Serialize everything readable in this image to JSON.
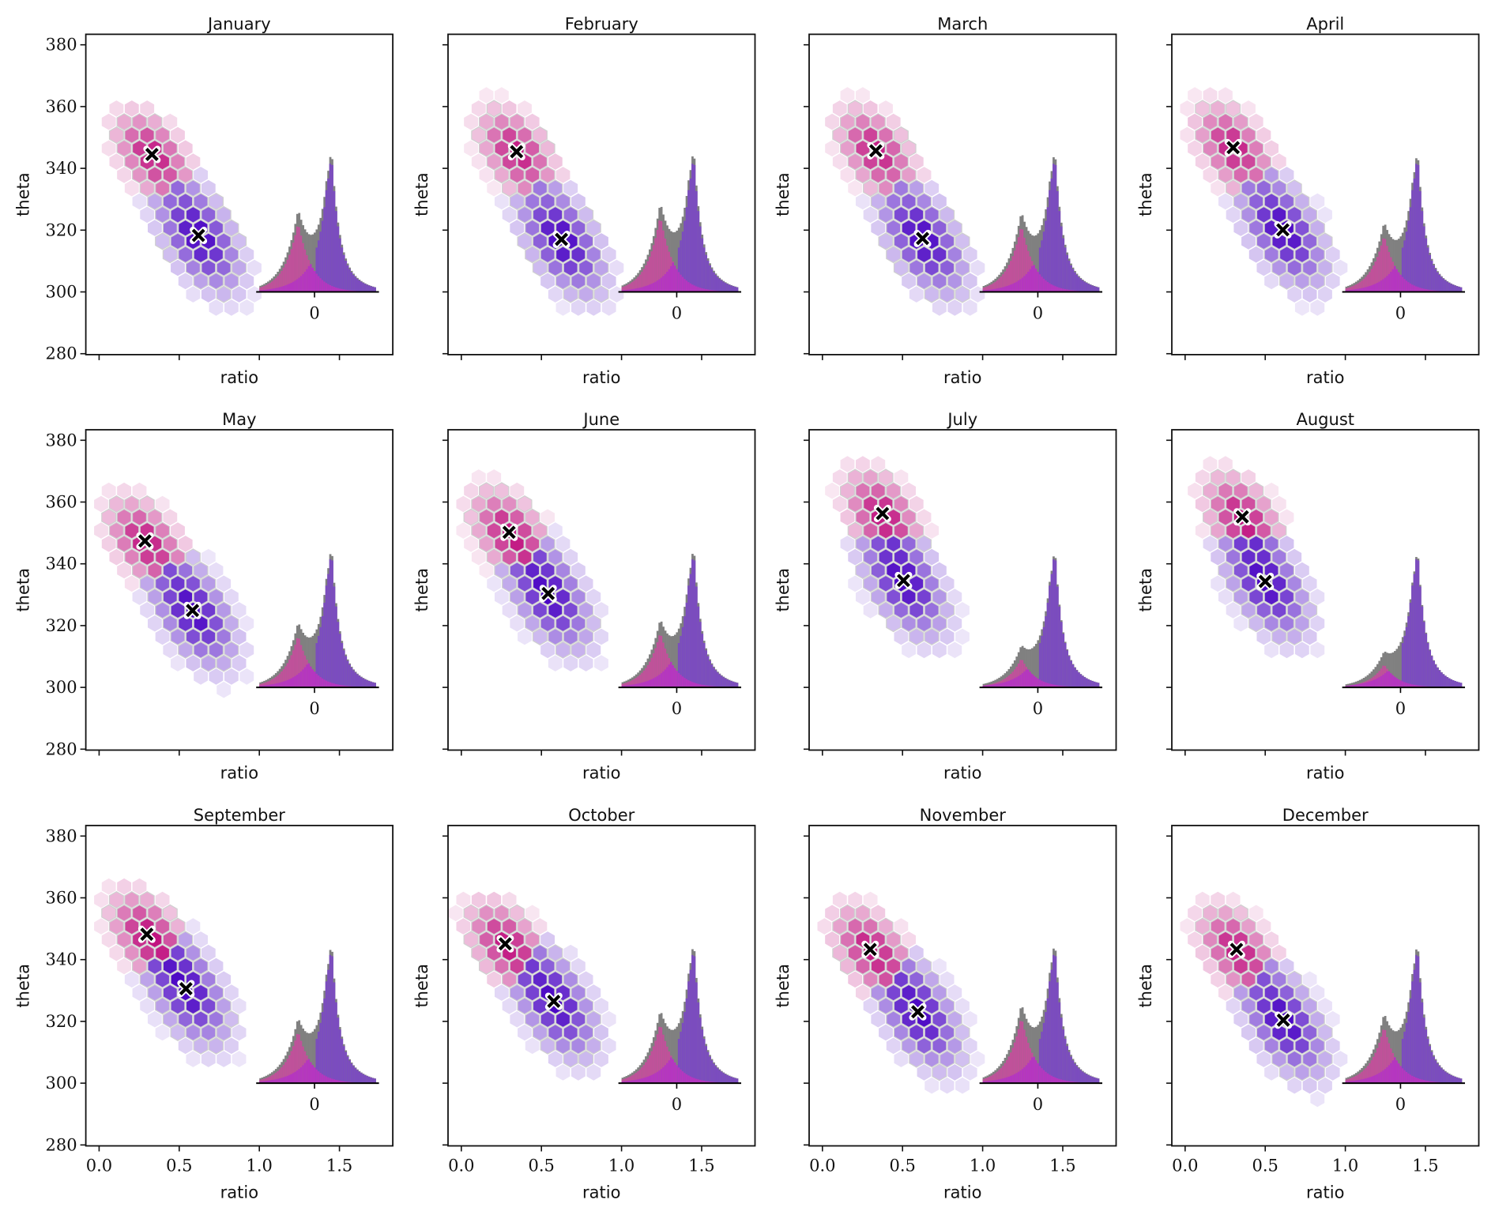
{
  "chart_data": {
    "type": "scatter",
    "subtype": "hexbin-with-inset-histogram",
    "xlabel": "ratio",
    "ylabel": "theta",
    "xlim": [
      -0.083,
      1.833
    ],
    "ylim": [
      279.7,
      383.4
    ],
    "xticks": [
      0.0,
      0.5,
      1.0,
      1.5
    ],
    "xtick_labels": [
      "0.0",
      "0.5",
      "1.0",
      "1.5"
    ],
    "yticks": [
      280,
      300,
      320,
      340,
      360,
      380
    ],
    "ytick_labels": [
      "280",
      "300",
      "320",
      "340",
      "360",
      "380"
    ],
    "inset_tick_label": "0",
    "colors": {
      "component_a": "#c0127f",
      "component_b": "#4b06c4",
      "hist_a": "#c0519a",
      "hist_b": "#7b4cbf",
      "hist_overlap": "#b536c0",
      "hist_total": "#808080",
      "marker": "#000000"
    },
    "panels": [
      {
        "title": "January",
        "a": {
          "x": 0.33,
          "y": 344.5
        },
        "b": {
          "x": 0.62,
          "y": 318.3
        },
        "hist_a_peak": 22.6,
        "hist_b_peak": 49.8
      },
      {
        "title": "February",
        "a": {
          "x": 0.345,
          "y": 345.4
        },
        "b": {
          "x": 0.625,
          "y": 317.0
        },
        "hist_a_peak": 24.7,
        "hist_b_peak": 49.8
      },
      {
        "title": "March",
        "a": {
          "x": 0.333,
          "y": 345.7
        },
        "b": {
          "x": 0.625,
          "y": 317.3
        },
        "hist_a_peak": 21.8,
        "hist_b_peak": 49.8
      },
      {
        "title": "April",
        "a": {
          "x": 0.3,
          "y": 346.7
        },
        "b": {
          "x": 0.61,
          "y": 320.1
        },
        "hist_a_peak": 18.5,
        "hist_b_peak": 49.8
      },
      {
        "title": "May",
        "a": {
          "x": 0.286,
          "y": 347.4
        },
        "b": {
          "x": 0.583,
          "y": 324.9
        },
        "hist_a_peak": 17.0,
        "hist_b_peak": 49.8
      },
      {
        "title": "June",
        "a": {
          "x": 0.298,
          "y": 350.2
        },
        "b": {
          "x": 0.542,
          "y": 330.4
        },
        "hist_a_peak": 18.0,
        "hist_b_peak": 49.8
      },
      {
        "title": "July",
        "a": {
          "x": 0.375,
          "y": 356.3
        },
        "b": {
          "x": 0.506,
          "y": 334.6
        },
        "hist_a_peak": 9.5,
        "hist_b_peak": 49.8
      },
      {
        "title": "August",
        "a": {
          "x": 0.357,
          "y": 355.2
        },
        "b": {
          "x": 0.5,
          "y": 334.3
        },
        "hist_a_peak": 7.5,
        "hist_b_peak": 49.8
      },
      {
        "title": "September",
        "a": {
          "x": 0.298,
          "y": 348.2
        },
        "b": {
          "x": 0.542,
          "y": 330.6
        },
        "hist_a_peak": 17.0,
        "hist_b_peak": 49.8
      },
      {
        "title": "October",
        "a": {
          "x": 0.274,
          "y": 345.1
        },
        "b": {
          "x": 0.577,
          "y": 326.5
        },
        "hist_a_peak": 19.5,
        "hist_b_peak": 49.8
      },
      {
        "title": "November",
        "a": {
          "x": 0.298,
          "y": 343.3
        },
        "b": {
          "x": 0.595,
          "y": 323.1
        },
        "hist_a_peak": 21.5,
        "hist_b_peak": 49.8
      },
      {
        "title": "December",
        "a": {
          "x": 0.321,
          "y": 343.3
        },
        "b": {
          "x": 0.613,
          "y": 320.4
        },
        "hist_a_peak": 18.5,
        "hist_b_peak": 49.8
      }
    ]
  }
}
